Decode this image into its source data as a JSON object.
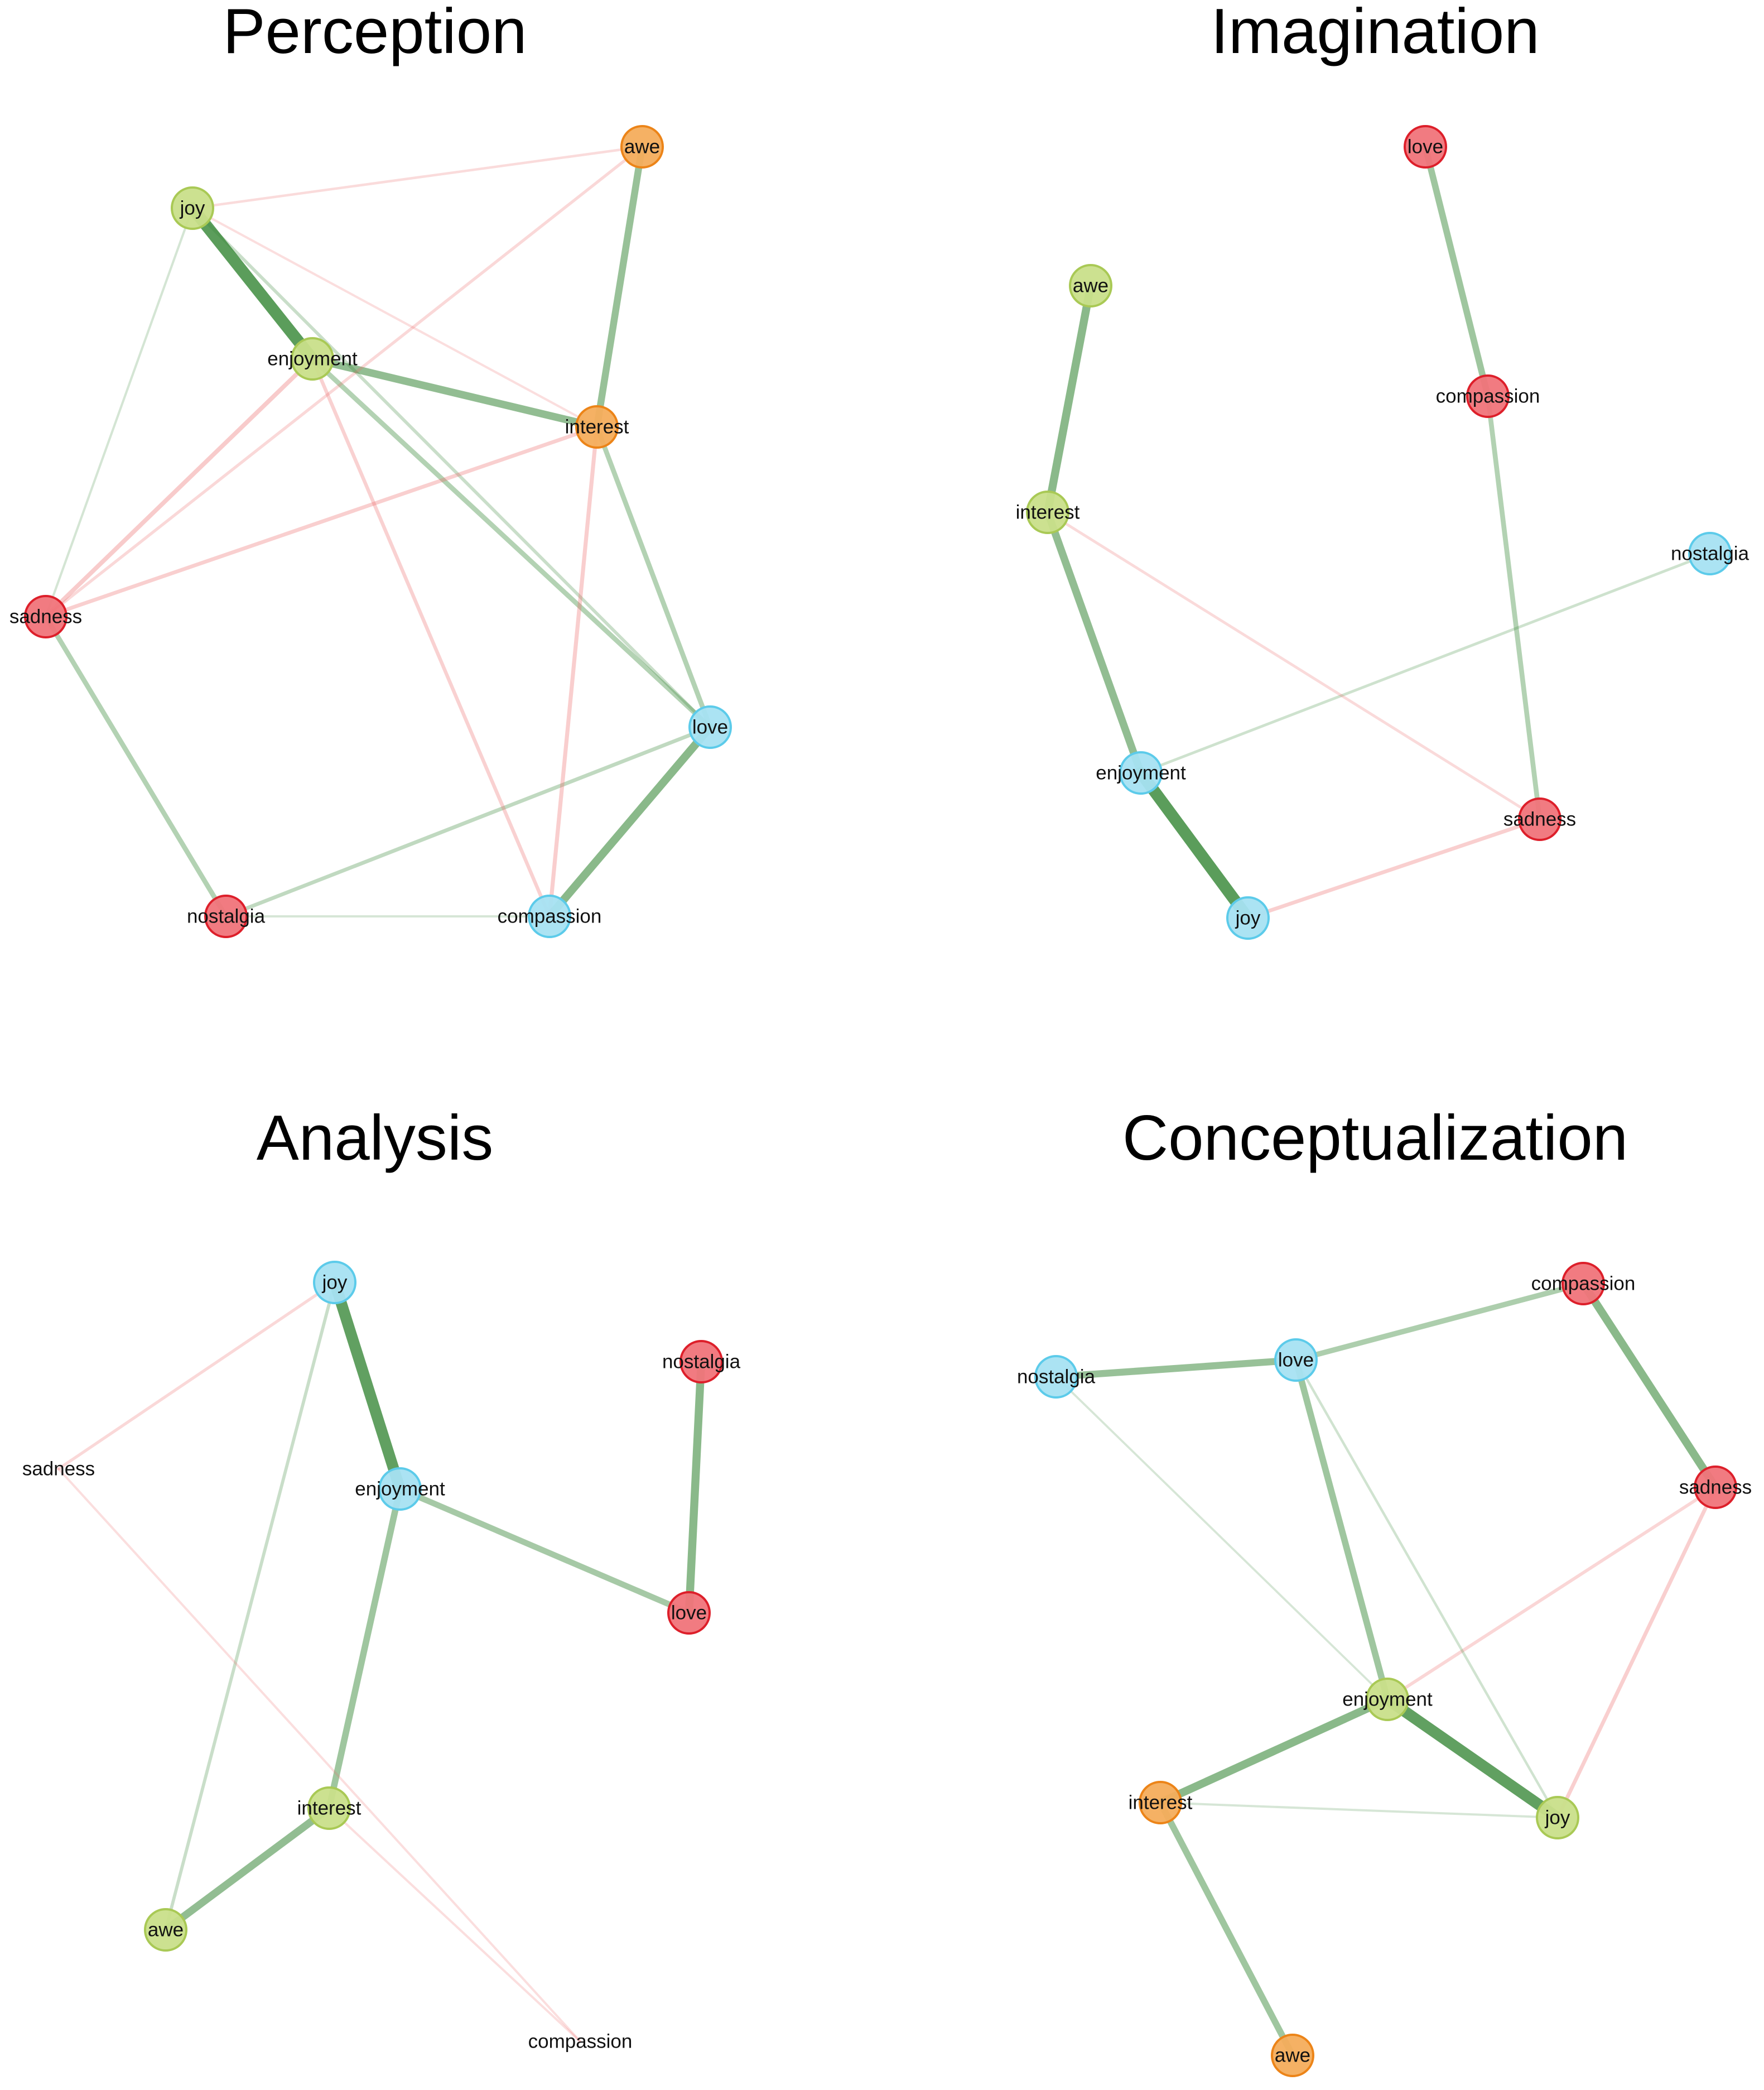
{
  "colors": {
    "green_node": "#c9df8a",
    "green_node_stroke": "#a9c955",
    "blue_node": "#a7e2f2",
    "blue_node_stroke": "#5ccbea",
    "red_node": "#f0747a",
    "red_node_stroke": "#dd1f2a",
    "orange_node": "#f4ad5c",
    "orange_node_stroke": "#ec8418",
    "positive_edge": "#3c8a3c",
    "negative_edge": "#ec6a6a"
  },
  "panels": [
    {
      "title": "Perception",
      "nodes": [
        {
          "id": "joy",
          "label": "joy",
          "color": "green"
        },
        {
          "id": "enjoyment",
          "label": "enjoyment",
          "color": "green"
        },
        {
          "id": "awe",
          "label": "awe",
          "color": "orange"
        },
        {
          "id": "interest",
          "label": "interest",
          "color": "orange"
        },
        {
          "id": "sadness",
          "label": "sadness",
          "color": "red"
        },
        {
          "id": "nostalgia",
          "label": "nostalgia",
          "color": "red"
        },
        {
          "id": "love",
          "label": "love",
          "color": "blue"
        },
        {
          "id": "compassion",
          "label": "compassion",
          "color": "blue"
        }
      ],
      "edges": [
        {
          "from": "joy",
          "to": "enjoyment",
          "weight": 0.95,
          "sign": "+"
        },
        {
          "from": "enjoyment",
          "to": "interest",
          "weight": 0.55,
          "sign": "+"
        },
        {
          "from": "awe",
          "to": "interest",
          "weight": 0.5,
          "sign": "+"
        },
        {
          "from": "love",
          "to": "compassion",
          "weight": 0.6,
          "sign": "+"
        },
        {
          "from": "interest",
          "to": "love",
          "weight": 0.3,
          "sign": "+"
        },
        {
          "from": "enjoyment",
          "to": "love",
          "weight": 0.3,
          "sign": "+"
        },
        {
          "from": "joy",
          "to": "love",
          "weight": 0.15,
          "sign": "+"
        },
        {
          "from": "sadness",
          "to": "nostalgia",
          "weight": 0.3,
          "sign": "+"
        },
        {
          "from": "nostalgia",
          "to": "love",
          "weight": 0.2,
          "sign": "+"
        },
        {
          "from": "sadness",
          "to": "enjoyment",
          "weight": 0.25,
          "sign": "-"
        },
        {
          "from": "sadness",
          "to": "interest",
          "weight": 0.2,
          "sign": "-"
        },
        {
          "from": "sadness",
          "to": "awe",
          "weight": 0.12,
          "sign": "-"
        },
        {
          "from": "enjoyment",
          "to": "compassion",
          "weight": 0.18,
          "sign": "-"
        },
        {
          "from": "interest",
          "to": "compassion",
          "weight": 0.22,
          "sign": "-"
        },
        {
          "from": "joy",
          "to": "awe",
          "weight": 0.08,
          "sign": "-"
        },
        {
          "from": "joy",
          "to": "sadness",
          "weight": 0.06,
          "sign": "+"
        },
        {
          "from": "joy",
          "to": "interest",
          "weight": 0.06,
          "sign": "-"
        },
        {
          "from": "nostalgia",
          "to": "compassion",
          "weight": 0.05,
          "sign": "+"
        }
      ]
    },
    {
      "title": "Imagination",
      "nodes": [
        {
          "id": "love",
          "label": "love",
          "color": "red"
        },
        {
          "id": "compassion",
          "label": "compassion",
          "color": "red"
        },
        {
          "id": "awe",
          "label": "awe",
          "color": "green"
        },
        {
          "id": "interest",
          "label": "interest",
          "color": "green"
        },
        {
          "id": "nostalgia",
          "label": "nostalgia",
          "color": "blue"
        },
        {
          "id": "enjoyment",
          "label": "enjoyment",
          "color": "blue"
        },
        {
          "id": "sadness",
          "label": "sadness",
          "color": "red"
        },
        {
          "id": "joy",
          "label": "joy",
          "color": "blue"
        }
      ],
      "edges": [
        {
          "from": "love",
          "to": "compassion",
          "weight": 0.45,
          "sign": "+"
        },
        {
          "from": "compassion",
          "to": "sadness",
          "weight": 0.3,
          "sign": "+"
        },
        {
          "from": "awe",
          "to": "interest",
          "weight": 0.6,
          "sign": "+"
        },
        {
          "from": "interest",
          "to": "enjoyment",
          "weight": 0.55,
          "sign": "+"
        },
        {
          "from": "enjoyment",
          "to": "joy",
          "weight": 0.95,
          "sign": "+"
        },
        {
          "from": "enjoyment",
          "to": "nostalgia",
          "weight": 0.1,
          "sign": "+"
        },
        {
          "from": "interest",
          "to": "sadness",
          "weight": 0.1,
          "sign": "-"
        },
        {
          "from": "joy",
          "to": "sadness",
          "weight": 0.2,
          "sign": "-"
        }
      ]
    },
    {
      "title": "Analysis",
      "nodes": [
        {
          "id": "joy",
          "label": "joy",
          "color": "blue"
        },
        {
          "id": "nostalgia",
          "label": "nostalgia",
          "color": "red"
        },
        {
          "id": "sadness",
          "label": "sadness",
          "color": "none"
        },
        {
          "id": "enjoyment",
          "label": "enjoyment",
          "color": "blue"
        },
        {
          "id": "love",
          "label": "love",
          "color": "red"
        },
        {
          "id": "interest",
          "label": "interest",
          "color": "green"
        },
        {
          "id": "awe",
          "label": "awe",
          "color": "green"
        },
        {
          "id": "compassion",
          "label": "compassion",
          "color": "none"
        }
      ],
      "edges": [
        {
          "from": "joy",
          "to": "enjoyment",
          "weight": 0.9,
          "sign": "+"
        },
        {
          "from": "enjoyment",
          "to": "love",
          "weight": 0.4,
          "sign": "+"
        },
        {
          "from": "nostalgia",
          "to": "love",
          "weight": 0.6,
          "sign": "+"
        },
        {
          "from": "enjoyment",
          "to": "interest",
          "weight": 0.45,
          "sign": "+"
        },
        {
          "from": "interest",
          "to": "awe",
          "weight": 0.55,
          "sign": "+"
        },
        {
          "from": "joy",
          "to": "awe",
          "weight": 0.15,
          "sign": "+"
        },
        {
          "from": "joy",
          "to": "sadness",
          "weight": 0.12,
          "sign": "-"
        },
        {
          "from": "sadness",
          "to": "compassion",
          "weight": 0.06,
          "sign": "-"
        },
        {
          "from": "interest",
          "to": "compassion",
          "weight": 0.06,
          "sign": "-"
        }
      ]
    },
    {
      "title": "Conceptualization",
      "nodes": [
        {
          "id": "compassion",
          "label": "compassion",
          "color": "red"
        },
        {
          "id": "nostalgia",
          "label": "nostalgia",
          "color": "blue"
        },
        {
          "id": "love",
          "label": "love",
          "color": "blue"
        },
        {
          "id": "sadness",
          "label": "sadness",
          "color": "red"
        },
        {
          "id": "enjoyment",
          "label": "enjoyment",
          "color": "green"
        },
        {
          "id": "interest",
          "label": "interest",
          "color": "orange"
        },
        {
          "id": "joy",
          "label": "joy",
          "color": "green"
        },
        {
          "id": "awe",
          "label": "awe",
          "color": "orange"
        }
      ],
      "edges": [
        {
          "from": "nostalgia",
          "to": "love",
          "weight": 0.5,
          "sign": "+"
        },
        {
          "from": "love",
          "to": "compassion",
          "weight": 0.35,
          "sign": "+"
        },
        {
          "from": "compassion",
          "to": "sadness",
          "weight": 0.6,
          "sign": "+"
        },
        {
          "from": "love",
          "to": "enjoyment",
          "weight": 0.45,
          "sign": "+"
        },
        {
          "from": "enjoyment",
          "to": "interest",
          "weight": 0.6,
          "sign": "+"
        },
        {
          "from": "enjoyment",
          "to": "joy",
          "weight": 0.9,
          "sign": "+"
        },
        {
          "from": "interest",
          "to": "awe",
          "weight": 0.45,
          "sign": "+"
        },
        {
          "from": "enjoyment",
          "to": "sadness",
          "weight": 0.15,
          "sign": "-"
        },
        {
          "from": "joy",
          "to": "sadness",
          "weight": 0.2,
          "sign": "-"
        },
        {
          "from": "love",
          "to": "joy",
          "weight": 0.08,
          "sign": "+"
        },
        {
          "from": "interest",
          "to": "joy",
          "weight": 0.05,
          "sign": "+"
        },
        {
          "from": "nostalgia",
          "to": "enjoyment",
          "weight": 0.04,
          "sign": "+"
        }
      ]
    }
  ]
}
